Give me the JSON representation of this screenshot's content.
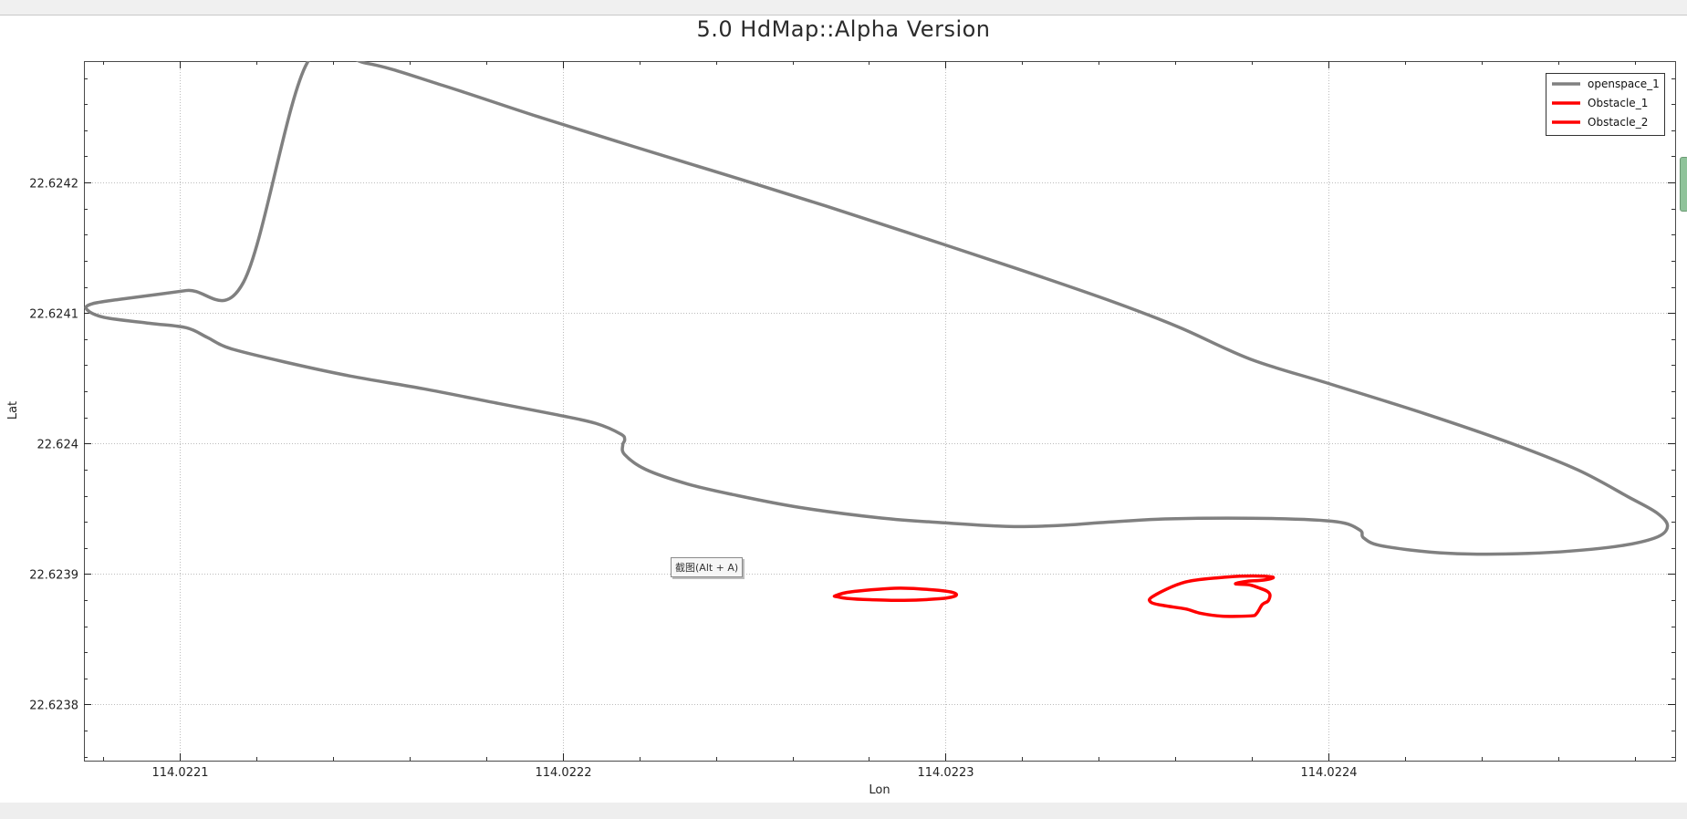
{
  "window": {
    "title": "5.0 HdMap::Alpha Version"
  },
  "tooltip": {
    "text": "截图(Alt + A)"
  },
  "chart_data": {
    "type": "line",
    "title": "5.0 HdMap::Alpha Version",
    "xlabel": "Lon",
    "ylabel": "Lat",
    "xlim": [
      114.022075,
      114.0224905
    ],
    "ylim": [
      22.623757,
      22.624293
    ],
    "xticks": [
      {
        "value": 114.0221,
        "label": "114.0221"
      },
      {
        "value": 114.0222,
        "label": "114.0222"
      },
      {
        "value": 114.0223,
        "label": "114.0223"
      },
      {
        "value": 114.0224,
        "label": "114.0224"
      }
    ],
    "yticks": [
      {
        "value": 22.6238,
        "label": "22.6238"
      },
      {
        "value": 22.6239,
        "label": "22.6239"
      },
      {
        "value": 22.624,
        "label": "22.624"
      },
      {
        "value": 22.6241,
        "label": "22.6241"
      },
      {
        "value": 22.6242,
        "label": "22.6242"
      }
    ],
    "grid": true,
    "legend_position": "top-right",
    "series": [
      {
        "name": "openspace_1",
        "color": "#808080",
        "closed": true,
        "points": [
          [
            114.0221333,
            22.6242917
          ],
          [
            114.0221487,
            22.6242914
          ],
          [
            114.0221687,
            22.6242744
          ],
          [
            114.0221937,
            22.6242503
          ],
          [
            114.0222187,
            22.6242274
          ],
          [
            114.0222437,
            22.6242049
          ],
          [
            114.0222687,
            22.624182
          ],
          [
            114.0222937,
            22.6241581
          ],
          [
            114.0223187,
            22.6241339
          ],
          [
            114.0223437,
            22.6241086
          ],
          [
            114.0223612,
            22.6240888
          ],
          [
            114.0223797,
            22.6240645
          ],
          [
            114.0224002,
            22.6240458
          ],
          [
            114.0224252,
            22.6240228
          ],
          [
            114.0224482,
            22.6239996
          ],
          [
            114.0224652,
            22.6239796
          ],
          [
            114.0224782,
            22.6239592
          ],
          [
            114.0224857,
            22.6239469
          ],
          [
            114.0224885,
            22.6239366
          ],
          [
            114.0224852,
            22.6239276
          ],
          [
            114.0224732,
            22.6239204
          ],
          [
            114.0224522,
            22.6239158
          ],
          [
            114.0224312,
            22.6239159
          ],
          [
            114.0224142,
            22.6239214
          ],
          [
            114.0224092,
            22.6239276
          ],
          [
            114.0224082,
            22.6239336
          ],
          [
            114.0224022,
            22.62394
          ],
          [
            114.0223852,
            22.6239425
          ],
          [
            114.0223587,
            22.6239423
          ],
          [
            114.0223412,
            22.6239395
          ],
          [
            114.0223297,
            22.6239372
          ],
          [
            114.0223167,
            22.6239364
          ],
          [
            114.0222997,
            22.6239392
          ],
          [
            114.0222832,
            22.6239429
          ],
          [
            114.0222617,
            22.6239511
          ],
          [
            114.0222442,
            22.623961
          ],
          [
            114.0222327,
            22.6239689
          ],
          [
            114.0222217,
            22.6239801
          ],
          [
            114.0222162,
            22.6239915
          ],
          [
            114.0222157,
            22.6239989
          ],
          [
            114.0222162,
            22.6240029
          ],
          [
            114.0222152,
            22.6240072
          ],
          [
            114.0222087,
            22.6240154
          ],
          [
            114.0221987,
            22.6240219
          ],
          [
            114.0221832,
            22.6240307
          ],
          [
            114.0221637,
            22.6240419
          ],
          [
            114.0221447,
            22.6240516
          ],
          [
            114.0221287,
            22.6240616
          ],
          [
            114.0221132,
            22.6240728
          ],
          [
            114.0221072,
            22.6240813
          ],
          [
            114.0221017,
            22.6240887
          ],
          [
            114.0220922,
            22.6240921
          ],
          [
            114.0220802,
            22.6240967
          ],
          [
            114.0220757,
            22.6241029
          ],
          [
            114.0220772,
            22.6241071
          ],
          [
            114.0220847,
            22.6241106
          ],
          [
            114.0221017,
            22.6241172
          ],
          [
            114.0221167,
            22.6241238
          ]
        ]
      },
      {
        "name": "Obstacle_1",
        "color": "#ff0000",
        "closed": true,
        "points": [
          [
            114.0222712,
            22.6238833
          ],
          [
            114.0222752,
            22.6238863
          ],
          [
            114.0222867,
            22.6238891
          ],
          [
            114.0222942,
            22.6238884
          ],
          [
            114.0223007,
            22.6238866
          ],
          [
            114.0223027,
            22.6238848
          ],
          [
            114.0223022,
            22.6238828
          ],
          [
            114.0222987,
            22.6238811
          ],
          [
            114.0222892,
            22.6238798
          ],
          [
            114.0222802,
            22.6238803
          ],
          [
            114.0222742,
            22.6238813
          ],
          [
            114.0222717,
            22.6238826
          ]
        ]
      },
      {
        "name": "Obstacle_2",
        "color": "#ff0000",
        "closed": true,
        "points": [
          [
            114.0223757,
            22.6238925
          ],
          [
            114.0223787,
            22.6238944
          ],
          [
            114.0223822,
            22.6238951
          ],
          [
            114.0223849,
            22.6238964
          ],
          [
            114.0223852,
            22.6238977
          ],
          [
            114.0223802,
            22.6238985
          ],
          [
            114.0223737,
            22.6238977
          ],
          [
            114.0223627,
            22.6238939
          ],
          [
            114.0223542,
            22.623883
          ],
          [
            114.0223537,
            22.6238782
          ],
          [
            114.0223572,
            22.6238757
          ],
          [
            114.0223627,
            22.6238732
          ],
          [
            114.0223667,
            22.6238698
          ],
          [
            114.0223722,
            22.6238677
          ],
          [
            114.0223797,
            22.6238679
          ],
          [
            114.0223812,
            22.6238697
          ],
          [
            114.0223827,
            22.6238766
          ],
          [
            114.0223842,
            22.6238793
          ],
          [
            114.0223847,
            22.623884
          ],
          [
            114.0223839,
            22.6238869
          ],
          [
            114.0223817,
            22.6238895
          ],
          [
            114.0223792,
            22.6238918
          ]
        ]
      }
    ]
  }
}
